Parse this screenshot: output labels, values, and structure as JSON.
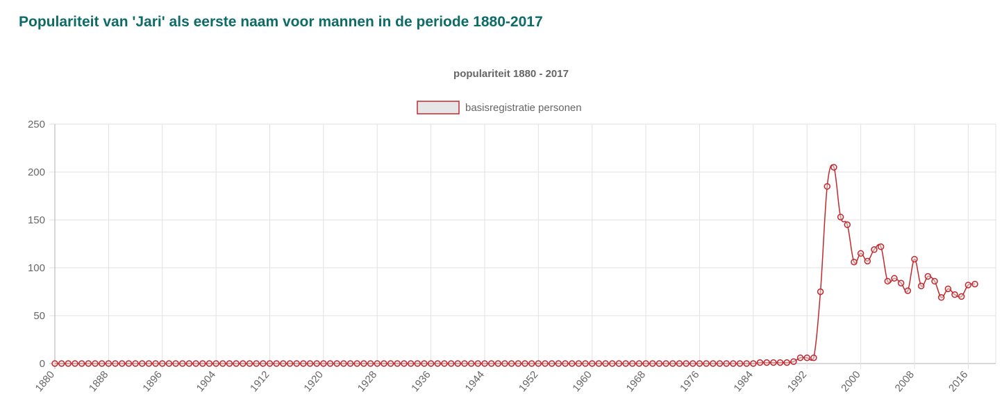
{
  "page": {
    "title": "Populariteit van 'Jari' als eerste naam voor mannen in de periode 1880-2017"
  },
  "colors": {
    "title": "#0e6b68",
    "series_line": "#c0282e",
    "legend_fill": "#e6e6e6",
    "grid": "#e1e1e1",
    "text": "#666666"
  },
  "chart_data": {
    "type": "line",
    "title": "populariteit 1880 - 2017",
    "xlabel": "",
    "ylabel": "",
    "ylim": [
      0,
      250
    ],
    "y_ticks": [
      0,
      50,
      100,
      150,
      200,
      250
    ],
    "x_tick_labels": [
      "1880",
      "1888",
      "1896",
      "1904",
      "1912",
      "1920",
      "1928",
      "1936",
      "1944",
      "1952",
      "1960",
      "1968",
      "1976",
      "1984",
      "1992",
      "2000",
      "2008",
      "2016"
    ],
    "legend_position": "top",
    "grid": true,
    "x": [
      1880,
      1881,
      1882,
      1883,
      1884,
      1885,
      1886,
      1887,
      1888,
      1889,
      1890,
      1891,
      1892,
      1893,
      1894,
      1895,
      1896,
      1897,
      1898,
      1899,
      1900,
      1901,
      1902,
      1903,
      1904,
      1905,
      1906,
      1907,
      1908,
      1909,
      1910,
      1911,
      1912,
      1913,
      1914,
      1915,
      1916,
      1917,
      1918,
      1919,
      1920,
      1921,
      1922,
      1923,
      1924,
      1925,
      1926,
      1927,
      1928,
      1929,
      1930,
      1931,
      1932,
      1933,
      1934,
      1935,
      1936,
      1937,
      1938,
      1939,
      1940,
      1941,
      1942,
      1943,
      1944,
      1945,
      1946,
      1947,
      1948,
      1949,
      1950,
      1951,
      1952,
      1953,
      1954,
      1955,
      1956,
      1957,
      1958,
      1959,
      1960,
      1961,
      1962,
      1963,
      1964,
      1965,
      1966,
      1967,
      1968,
      1969,
      1970,
      1971,
      1972,
      1973,
      1974,
      1975,
      1976,
      1977,
      1978,
      1979,
      1980,
      1981,
      1982,
      1983,
      1984,
      1985,
      1986,
      1987,
      1988,
      1989,
      1990,
      1991,
      1992,
      1993,
      1994,
      1995,
      1996,
      1997,
      1998,
      1999,
      2000,
      2001,
      2002,
      2003,
      2004,
      2005,
      2006,
      2007,
      2008,
      2009,
      2010,
      2011,
      2012,
      2013,
      2014,
      2015,
      2016,
      2017
    ],
    "series": [
      {
        "name": "basisregistratie personen",
        "values": [
          0,
          0,
          0,
          0,
          0,
          0,
          0,
          0,
          0,
          0,
          0,
          0,
          0,
          0,
          0,
          0,
          0,
          0,
          0,
          0,
          0,
          0,
          0,
          0,
          0,
          0,
          0,
          0,
          0,
          0,
          0,
          0,
          0,
          0,
          0,
          0,
          0,
          0,
          0,
          0,
          0,
          0,
          0,
          0,
          0,
          0,
          0,
          0,
          0,
          0,
          0,
          0,
          0,
          0,
          0,
          0,
          0,
          0,
          0,
          0,
          0,
          0,
          0,
          0,
          0,
          0,
          0,
          0,
          0,
          0,
          0,
          0,
          0,
          0,
          0,
          0,
          0,
          0,
          0,
          0,
          0,
          0,
          0,
          0,
          0,
          0,
          0,
          0,
          0,
          0,
          0,
          0,
          0,
          0,
          0,
          0,
          0,
          0,
          0,
          0,
          0,
          0,
          0,
          0,
          0,
          1,
          1,
          1,
          1,
          1,
          2,
          6,
          6,
          6,
          75,
          185,
          205,
          153,
          145,
          106,
          115,
          107,
          119,
          122,
          86,
          89,
          84,
          76,
          109,
          81,
          91,
          86,
          69,
          78,
          72,
          70,
          82,
          83
        ]
      }
    ]
  }
}
